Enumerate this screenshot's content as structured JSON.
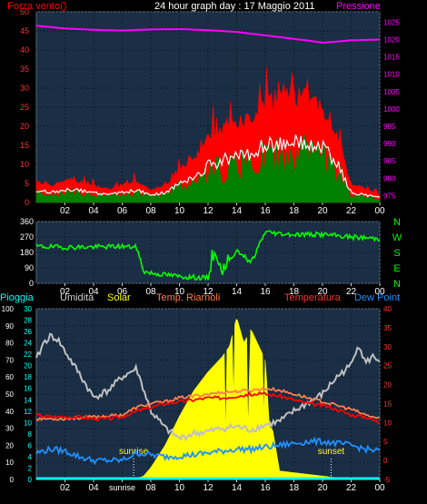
{
  "header": {
    "title": "24 hour graph day : 17 Maggio 2011",
    "left_label": "Forza vento()",
    "right_label": "Pressione"
  },
  "legend": {
    "pioggia": "Pioggia",
    "umidita": "Umidita",
    "solar": "Solar",
    "temp_riarnoli": "Temp. Riarnoli",
    "temperatura": "Temperatura",
    "dew_point": "Dew Point"
  },
  "compass": [
    "N",
    "W",
    "S",
    "E",
    "N"
  ],
  "annotations": {
    "sunrise": "sunrise",
    "sunset": "sunset"
  },
  "colors": {
    "wind_gust": "#ff0000",
    "wind_avg": "#ffffff",
    "wind_fill": "#008000",
    "pressure": "#ff00ff",
    "direction": "#00ff00",
    "humidity": "#c0c0c0",
    "solar": "#ffff00",
    "temp_riarnoli": "#ff7f50",
    "temperature": "#ff0000",
    "dew_point": "#1e90ff",
    "rain": "#00ffff",
    "plot_bg": "#1a2e45"
  },
  "chart_data": [
    {
      "type": "line",
      "x_ticks": [
        "02",
        "04",
        "06",
        "08",
        "10",
        "12",
        "14",
        "16",
        "18",
        "20",
        "22",
        "00"
      ],
      "y_left": {
        "ticks": [
          0,
          5,
          10,
          15,
          20,
          25,
          30,
          35,
          40,
          45,
          50
        ],
        "lim": [
          0,
          50
        ]
      },
      "y_right": {
        "ticks": [
          975,
          980,
          985,
          990,
          995,
          1000,
          1005,
          1010,
          1015,
          1020,
          1025
        ],
        "lim": [
          973,
          1028
        ]
      },
      "series": [
        {
          "name": "Forza vento()",
          "axis": "left",
          "x": [
            0,
            1,
            2,
            3,
            4,
            5,
            6,
            7,
            8,
            9,
            10,
            11,
            12,
            13,
            14,
            15,
            16,
            17,
            18,
            19,
            20,
            21,
            22,
            23,
            24
          ],
          "y": [
            5,
            4,
            5,
            5,
            4,
            3,
            4,
            5,
            3,
            4,
            8,
            10,
            15,
            17,
            18,
            20,
            23,
            24,
            25,
            24,
            22,
            16,
            4,
            3,
            2
          ]
        },
        {
          "name": "Pressione",
          "axis": "right",
          "x": [
            0,
            2,
            4,
            6,
            8,
            10,
            12,
            14,
            16,
            18,
            19,
            20,
            21,
            22,
            24
          ],
          "y": [
            1024,
            1023.2,
            1022.8,
            1022.6,
            1022.9,
            1023,
            1022.7,
            1022.2,
            1021.2,
            1020.2,
            1019.7,
            1019.1,
            1019.4,
            1019.8,
            1020
          ]
        }
      ]
    },
    {
      "type": "line",
      "x_ticks": [
        "02",
        "04",
        "06",
        "08",
        "10",
        "12",
        "14",
        "16",
        "18",
        "20",
        "22",
        "00"
      ],
      "y_left": {
        "ticks": [
          0,
          90,
          180,
          270,
          360
        ],
        "lim": [
          0,
          360
        ]
      },
      "compass": [
        "N",
        "W",
        "S",
        "E",
        "N"
      ],
      "series": [
        {
          "name": "direction",
          "x": [
            0,
            2,
            4,
            6,
            7,
            7.5,
            8,
            10,
            12,
            12.5,
            13,
            14,
            15,
            16,
            17,
            18,
            20,
            22,
            24
          ],
          "y": [
            215,
            210,
            212,
            215,
            210,
            70,
            60,
            40,
            30,
            180,
            60,
            200,
            120,
            300,
            290,
            285,
            285,
            270,
            260
          ]
        }
      ]
    },
    {
      "type": "line",
      "x_ticks": [
        "02",
        "04",
        "sunrise",
        "08",
        "10",
        "12",
        "14",
        "16",
        "18",
        "20",
        "22",
        "00"
      ],
      "y_left": {
        "ticks": [
          0,
          10,
          20,
          30,
          40,
          50,
          60,
          70,
          80,
          90,
          100
        ],
        "lim": [
          0,
          100
        ]
      },
      "y_left_inner": {
        "ticks": [
          0,
          2,
          4,
          6,
          8,
          10,
          12,
          14,
          16,
          18,
          20,
          22,
          24,
          26,
          28,
          30
        ],
        "lim": [
          0,
          30
        ]
      },
      "y_right": {
        "ticks": [
          -5,
          0,
          5,
          10,
          15,
          20,
          25,
          30,
          35,
          40
        ],
        "lim": [
          -5,
          40
        ]
      },
      "series": [
        {
          "name": "Umidita",
          "axis": "left",
          "x": [
            0,
            0.5,
            1,
            1.5,
            2,
            3,
            4,
            5,
            6,
            7,
            8,
            9,
            10,
            11,
            12,
            13,
            14,
            15,
            16,
            17,
            18,
            19,
            20,
            21,
            22,
            22.5,
            23,
            23.5,
            24
          ],
          "y": [
            70,
            80,
            84,
            82,
            75,
            62,
            48,
            52,
            60,
            65,
            40,
            30,
            24,
            27,
            28,
            30,
            31,
            29,
            32,
            34,
            40,
            45,
            50,
            60,
            67,
            80,
            68,
            72,
            70
          ]
        },
        {
          "name": "Solar",
          "axis": "left",
          "x": [
            6.8,
            7.5,
            8,
            9,
            10,
            11,
            12,
            13,
            13.5,
            14,
            14.5,
            15,
            16,
            16.3,
            16.5,
            17,
            18,
            19,
            20,
            21,
            21.5
          ],
          "y": [
            0,
            2,
            7,
            20,
            37,
            52,
            63,
            72,
            78,
            95,
            80,
            88,
            70,
            30,
            30,
            5,
            4,
            3,
            2,
            1,
            0
          ]
        },
        {
          "name": "Temp. Riarnoli",
          "axis": "right",
          "x": [
            0,
            2,
            4,
            6,
            7,
            8,
            9,
            10,
            11,
            12,
            13,
            14,
            15,
            16,
            17,
            18,
            19,
            20,
            21,
            22,
            23,
            24
          ],
          "y": [
            11,
            11,
            11.5,
            12,
            14,
            15,
            15.5,
            16.5,
            17,
            17.5,
            18,
            18.2,
            18.5,
            19,
            18.5,
            17.5,
            16.5,
            15.5,
            14.5,
            13.5,
            12,
            11
          ]
        },
        {
          "name": "Temperatura",
          "axis": "right",
          "x": [
            0,
            1,
            2,
            3,
            4,
            5,
            6,
            7,
            8,
            9,
            10,
            11,
            12,
            13,
            14,
            15,
            16,
            17,
            18,
            19,
            20,
            21,
            22,
            23,
            24
          ],
          "y": [
            12,
            11.5,
            11.5,
            11.5,
            11,
            11,
            11.5,
            13,
            14,
            15,
            15.5,
            16,
            16.5,
            16.5,
            17,
            17.5,
            17.5,
            17,
            16,
            15,
            14.5,
            13.5,
            12,
            11.5,
            10
          ]
        },
        {
          "name": "Dew Point",
          "axis": "right",
          "x": [
            0,
            1,
            2,
            3,
            4,
            5,
            6,
            7,
            8,
            9,
            10,
            11,
            12,
            13,
            14,
            15,
            16,
            17,
            18,
            19,
            20,
            21,
            22,
            23,
            24
          ],
          "y": [
            2,
            3,
            2.5,
            1,
            0,
            0,
            0,
            2,
            1.5,
            1,
            1.2,
            1.5,
            2,
            2.5,
            3,
            3,
            3.5,
            4,
            4.5,
            5,
            5,
            4.5,
            4,
            3,
            2.5
          ]
        },
        {
          "name": "Pioggia",
          "axis": "left",
          "x": [
            0,
            24
          ],
          "y": [
            0,
            0
          ]
        }
      ]
    }
  ]
}
